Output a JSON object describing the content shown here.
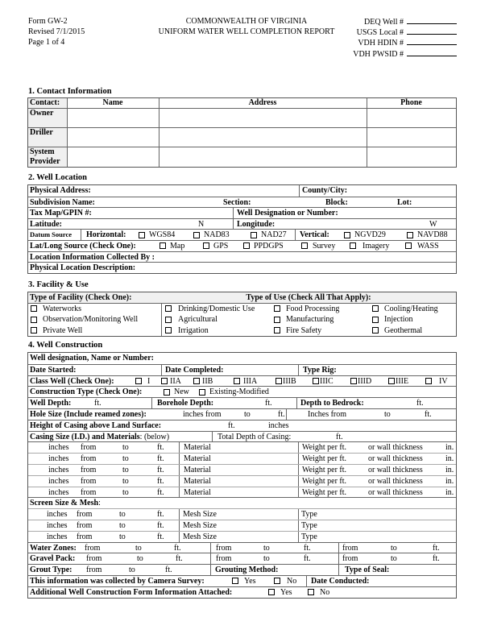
{
  "header": {
    "form": "Form GW-2",
    "revised": "Revised 7/1/2015",
    "page": "Page 1 of 4",
    "title1": "COMMONWEALTH OF VIRGINIA",
    "title2": "UNIFORM WATER WELL COMPLETION REPORT",
    "ids": [
      "DEQ Well #",
      "USGS Local #",
      "VDH HDIN #",
      "VDH PWSID #"
    ]
  },
  "s1": {
    "title": "1. Contact Information",
    "cols": [
      "Contact:",
      "Name",
      "Address",
      "Phone"
    ],
    "rows": [
      "Owner",
      "Driller",
      "System Provider"
    ]
  },
  "s2": {
    "title": "2. Well Location",
    "physical_address": "Physical Address:",
    "county": "County/City:",
    "subdivision": "Subdivision Name:",
    "section": "Section:",
    "block": "Block:",
    "lot": "Lot:",
    "taxmap": "Tax Map/GPIN #:",
    "well_designation": "Well Designation or Number:",
    "latitude": "Latitude:",
    "n": "N",
    "longitude": "Longitude:",
    "w": "W",
    "datum": "Datum Source",
    "horizontal": "Horizontal:",
    "h_opts": [
      "WGS84",
      "NAD83",
      "NAD27"
    ],
    "vertical": "Vertical:",
    "v_opts": [
      "NGVD29",
      "NAVD88"
    ],
    "latlong": "Lat/Long Source (Check One):",
    "ll_opts": [
      "Map",
      "GPS",
      "PPDGPS",
      "Survey",
      "Imagery",
      "WASS"
    ],
    "collected": "Location Information Collected By :",
    "description": "Physical Location Description:"
  },
  "s3": {
    "title": "3. Facility & Use",
    "facility_header": "Type of Facility (Check One):",
    "use_header": "Type of Use (Check All That Apply):",
    "facility": [
      "Waterworks",
      "Observation/Monitoring Well",
      "Private Well"
    ],
    "use": [
      "Drinking/Domestic Use",
      "Food Processing",
      "Cooling/Heating",
      "Agricultural",
      "Manufacturing",
      "Injection",
      "Irrigation",
      "Fire Safety",
      "Geothermal"
    ]
  },
  "s4": {
    "title": "4.  Well Construction",
    "designation": "Well designation, Name or Number:",
    "date_started": "Date Started:",
    "date_completed": "Date Completed:",
    "type_rig": "Type Rig:",
    "class_well": "Class Well  (Check One):",
    "class_opts": [
      "I",
      "IIA",
      "IIB",
      "IIIA",
      "IIIB",
      "IIIC",
      "IIID",
      "IIIE",
      "IV"
    ],
    "construction": "Construction Type (Check One):",
    "construction_opts": [
      "New",
      "Existing-Modified"
    ],
    "well_depth": "Well Depth:",
    "borehole_depth": "Borehole Depth:",
    "bedrock": "Depth to Bedrock:",
    "hole_size": "Hole Size (Include reamed zones):",
    "inches_from_lc": "inches from",
    "inches_from_uc": "Inches  from",
    "height_casing": "Height of Casing above Land Surface:",
    "casing_size": "Casing Size (I.D.) and Materials",
    "casing_below": ": (below)",
    "total_depth": "Total Depth of Casing:",
    "inches": "inches",
    "from": "from",
    "to": "to",
    "ft": "ft.",
    "material": "Material",
    "weight": "Weight per ft.",
    "wall": "or wall thickness",
    "in": "in.",
    "screen": "Screen Size & Mesh",
    "colon": ":",
    "mesh": "Mesh Size",
    "type": "Type",
    "water_zones": "Water Zones:",
    "gravel_pack": "Gravel Pack:",
    "grout_type": "Grout Type:",
    "grouting_method": "Grouting Method:",
    "type_seal": "Type of Seal:",
    "camera": "This information was collected by Camera Survey:",
    "yes": "Yes",
    "no": "No",
    "date_conducted": "Date Conducted:",
    "additional": "Additional Well Construction Form Information Attached:"
  }
}
